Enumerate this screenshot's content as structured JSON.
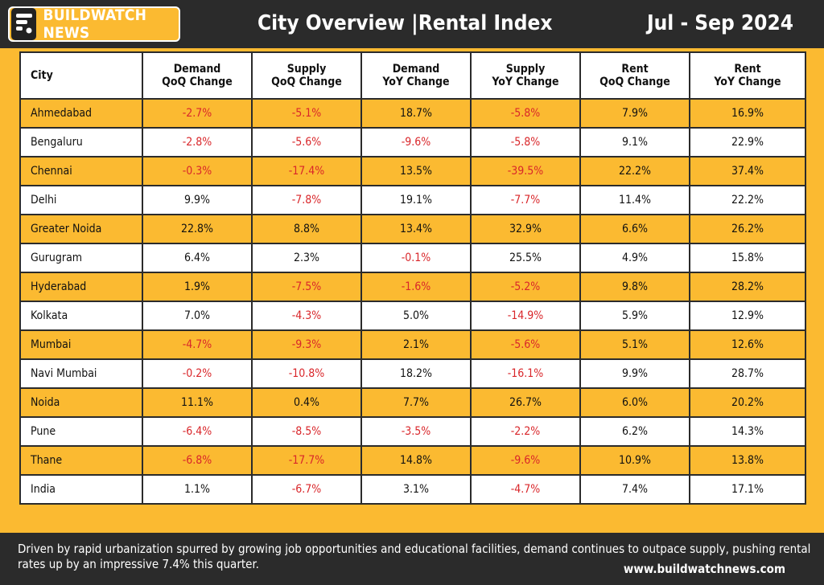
{
  "header": {
    "logo_text": "BUILDWATCH NEWS",
    "title": "City Overview  |Rental Index",
    "period": "Jul - Sep 2024"
  },
  "table": {
    "columns": [
      "City",
      "Demand QoQ Change",
      "Supply QoQ Change",
      "Demand YoY Change",
      "Supply YoY Change",
      "Rent QoQ Change",
      "Rent YoY Change"
    ],
    "rows": [
      [
        "Ahmedabad",
        "-2.7%",
        "-5.1%",
        "18.7%",
        "-5.8%",
        "7.9%",
        "16.9%"
      ],
      [
        "Bengaluru",
        "-2.8%",
        "-5.6%",
        "-9.6%",
        "-5.8%",
        "9.1%",
        "22.9%"
      ],
      [
        "Chennai",
        "-0.3%",
        "-17.4%",
        "13.5%",
        "-39.5%",
        "22.2%",
        "37.4%"
      ],
      [
        "Delhi",
        "9.9%",
        "-7.8%",
        "19.1%",
        "-7.7%",
        "11.4%",
        "22.2%"
      ],
      [
        "Greater Noida",
        "22.8%",
        "8.8%",
        "13.4%",
        "32.9%",
        "6.6%",
        "26.2%"
      ],
      [
        "Gurugram",
        "6.4%",
        "2.3%",
        "-0.1%",
        "25.5%",
        "4.9%",
        "15.8%"
      ],
      [
        "Hyderabad",
        "1.9%",
        "-7.5%",
        "-1.6%",
        "-5.2%",
        "9.8%",
        "28.2%"
      ],
      [
        "Kolkata",
        "7.0%",
        "-4.3%",
        "5.0%",
        "-14.9%",
        "5.9%",
        "12.9%"
      ],
      [
        "Mumbai",
        "-4.7%",
        "-9.3%",
        "2.1%",
        "-5.6%",
        "5.1%",
        "12.6%"
      ],
      [
        "Navi Mumbai",
        "-0.2%",
        "-10.8%",
        "18.2%",
        "-16.1%",
        "9.9%",
        "28.7%"
      ],
      [
        "Noida",
        "11.1%",
        "0.4%",
        "7.7%",
        "26.7%",
        "6.0%",
        "20.2%"
      ],
      [
        "Pune",
        "-6.4%",
        "-8.5%",
        "-3.5%",
        "-2.2%",
        "6.2%",
        "14.3%"
      ],
      [
        "Thane",
        "-6.8%",
        "-17.7%",
        "14.8%",
        "-9.6%",
        "10.9%",
        "13.8%"
      ],
      [
        "India",
        "1.1%",
        "-6.7%",
        "3.1%",
        "-4.7%",
        "7.4%",
        "17.1%"
      ]
    ]
  },
  "footer": {
    "text": "Driven by rapid urbanization spurred by growing job opportunities and educational facilities, demand continues to outpace supply, pushing rental rates up by an impressive 7.4% this quarter.",
    "url": "www.buildwatchnews.com"
  },
  "colors": {
    "accent": "#fbba31",
    "dark": "#2b2b2b",
    "negative": "#d9262a"
  }
}
